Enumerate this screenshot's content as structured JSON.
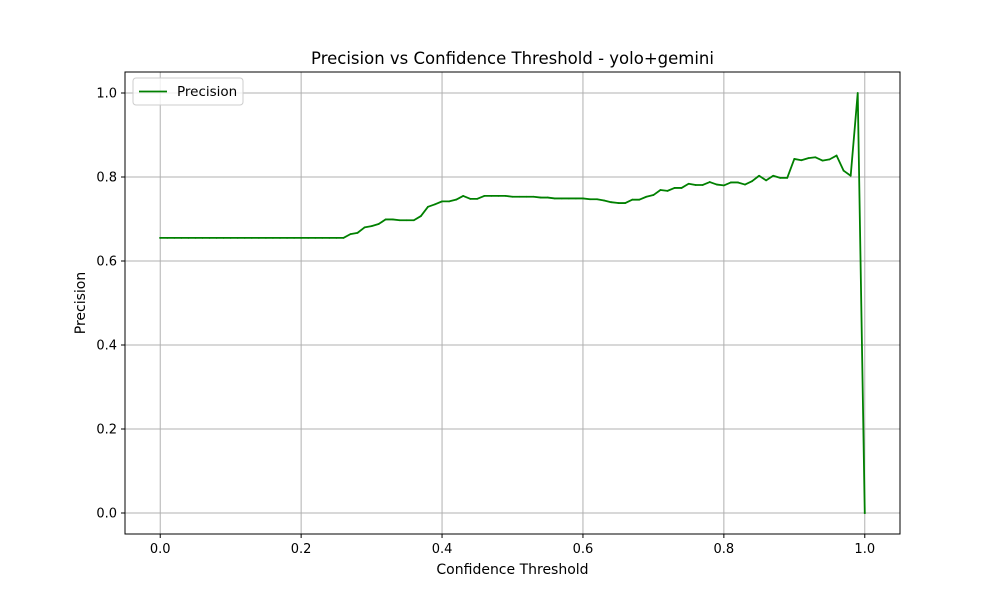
{
  "chart_data": {
    "type": "line",
    "title": "Precision vs Confidence Threshold - yolo+gemini",
    "xlabel": "Confidence Threshold",
    "ylabel": "Precision",
    "xlim": [
      -0.05,
      1.05
    ],
    "ylim": [
      -0.05,
      1.05
    ],
    "grid": true,
    "legend_position": "top-left",
    "xticks": [
      0.0,
      0.2,
      0.4,
      0.6,
      0.8,
      1.0
    ],
    "xtick_labels": [
      "0.0",
      "0.2",
      "0.4",
      "0.6",
      "0.8",
      "1.0"
    ],
    "yticks": [
      0.0,
      0.2,
      0.4,
      0.6,
      0.8,
      1.0
    ],
    "ytick_labels": [
      "0.0",
      "0.2",
      "0.4",
      "0.6",
      "0.8",
      "1.0"
    ],
    "series": [
      {
        "name": "Precision",
        "color": "#008000",
        "x": [
          0.0,
          0.01,
          0.02,
          0.03,
          0.04,
          0.05,
          0.06,
          0.07,
          0.08,
          0.09,
          0.1,
          0.11,
          0.12,
          0.13,
          0.14,
          0.15,
          0.16,
          0.17,
          0.18,
          0.19,
          0.2,
          0.21,
          0.22,
          0.23,
          0.24,
          0.25,
          0.26,
          0.27,
          0.28,
          0.29,
          0.3,
          0.31,
          0.32,
          0.33,
          0.34,
          0.35,
          0.36,
          0.37,
          0.38,
          0.39,
          0.4,
          0.41,
          0.42,
          0.43,
          0.44,
          0.45,
          0.46,
          0.47,
          0.48,
          0.49,
          0.5,
          0.51,
          0.52,
          0.53,
          0.54,
          0.55,
          0.56,
          0.57,
          0.58,
          0.59,
          0.6,
          0.61,
          0.62,
          0.63,
          0.64,
          0.65,
          0.66,
          0.67,
          0.68,
          0.69,
          0.7,
          0.71,
          0.72,
          0.73,
          0.74,
          0.75,
          0.76,
          0.77,
          0.78,
          0.79,
          0.8,
          0.81,
          0.82,
          0.83,
          0.84,
          0.85,
          0.86,
          0.87,
          0.88,
          0.89,
          0.9,
          0.91,
          0.92,
          0.93,
          0.94,
          0.95,
          0.96,
          0.97,
          0.98,
          0.99,
          1.0
        ],
        "y": [
          0.655,
          0.655,
          0.655,
          0.655,
          0.655,
          0.655,
          0.655,
          0.655,
          0.655,
          0.655,
          0.655,
          0.655,
          0.655,
          0.655,
          0.655,
          0.655,
          0.655,
          0.655,
          0.655,
          0.655,
          0.655,
          0.655,
          0.655,
          0.655,
          0.655,
          0.655,
          0.655,
          0.664,
          0.667,
          0.68,
          0.683,
          0.688,
          0.699,
          0.699,
          0.697,
          0.697,
          0.697,
          0.707,
          0.729,
          0.735,
          0.742,
          0.742,
          0.746,
          0.755,
          0.748,
          0.748,
          0.755,
          0.755,
          0.755,
          0.755,
          0.753,
          0.753,
          0.753,
          0.753,
          0.751,
          0.751,
          0.749,
          0.749,
          0.749,
          0.749,
          0.749,
          0.747,
          0.747,
          0.744,
          0.74,
          0.738,
          0.738,
          0.746,
          0.746,
          0.753,
          0.757,
          0.769,
          0.767,
          0.774,
          0.774,
          0.784,
          0.781,
          0.781,
          0.788,
          0.782,
          0.78,
          0.787,
          0.787,
          0.782,
          0.79,
          0.803,
          0.792,
          0.803,
          0.798,
          0.798,
          0.843,
          0.84,
          0.845,
          0.847,
          0.839,
          0.842,
          0.851,
          0.815,
          0.803,
          1.0,
          0.0
        ]
      }
    ]
  }
}
